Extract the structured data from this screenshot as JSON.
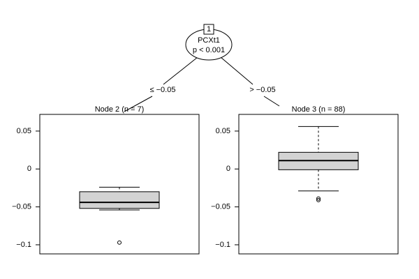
{
  "tree": {
    "node_id": "1",
    "variable": "PCXt1",
    "p_value": "p < 0.001",
    "left_edge": "≤ −0.05",
    "right_edge": "> −0.05"
  },
  "chart_data": [
    {
      "type": "box",
      "title": "Node 2 (n = 7)",
      "color": "#d3d3d3",
      "ylim": [
        -0.112,
        0.072
      ],
      "yticks": [
        0.05,
        0,
        {
          "value": -0.05,
          "label": "−0.05"
        },
        {
          "value": -0.1,
          "label": "−0.1"
        }
      ],
      "box": {
        "whisker_low": -0.054,
        "q1": -0.052,
        "median": -0.044,
        "q3": -0.03,
        "whisker_high": -0.024,
        "outliers": [
          -0.097
        ]
      }
    },
    {
      "type": "box",
      "title": "Node 3 (n = 88)",
      "color": "#d3d3d3",
      "ylim": [
        -0.112,
        0.072
      ],
      "yticks": [
        0.05,
        0,
        {
          "value": -0.05,
          "label": "−0.05"
        },
        {
          "value": -0.1,
          "label": "−0.1"
        }
      ],
      "box": {
        "whisker_low": -0.029,
        "q1": -0.001,
        "median": 0.011,
        "q3": 0.022,
        "whisker_high": 0.056,
        "outliers": [
          -0.039,
          -0.041
        ]
      }
    }
  ]
}
